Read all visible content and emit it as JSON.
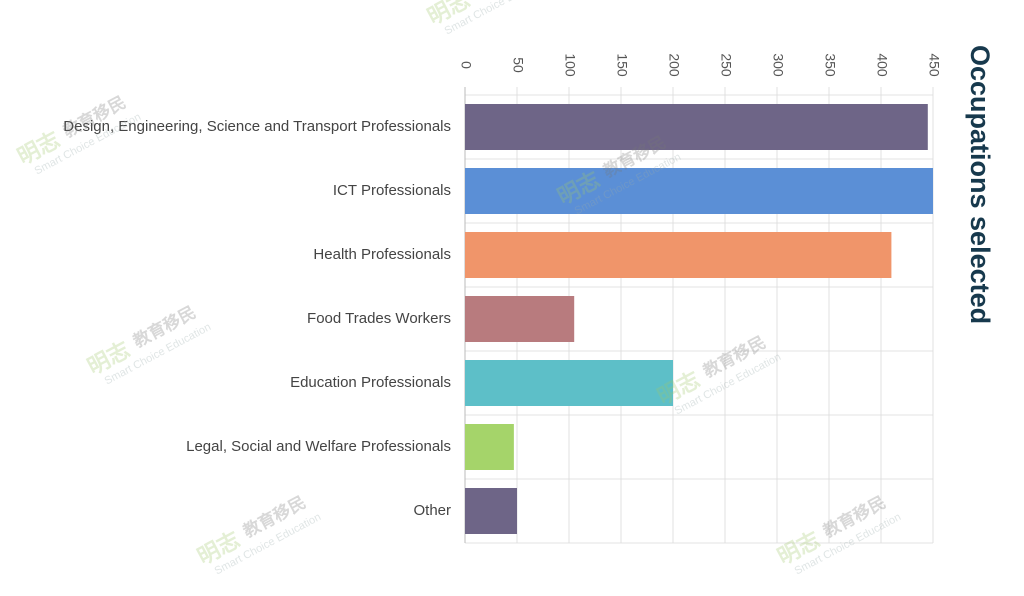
{
  "chart_data": {
    "type": "bar",
    "orientation": "horizontal",
    "title": "Occupations selected",
    "categories": [
      "Design, Engineering, Science and Transport Professionals",
      "ICT Professionals",
      "Health Professionals",
      "Food Trades Workers",
      "Education Professionals",
      "Legal, Social and Welfare Professionals",
      "Other"
    ],
    "values": [
      445,
      450,
      410,
      105,
      200,
      47,
      50
    ],
    "colors": [
      "#6e6587",
      "#5b8fd6",
      "#f0956a",
      "#b87b7e",
      "#5dbfc8",
      "#a5d46a",
      "#6e6587"
    ],
    "xlim": [
      0,
      450
    ],
    "xticks": [
      0,
      50,
      100,
      150,
      200,
      250,
      300,
      350,
      400,
      450
    ],
    "grid": true,
    "watermark": {
      "brand": "明志",
      "service": "教育移民",
      "tagline": "Smart Choice Education"
    }
  }
}
